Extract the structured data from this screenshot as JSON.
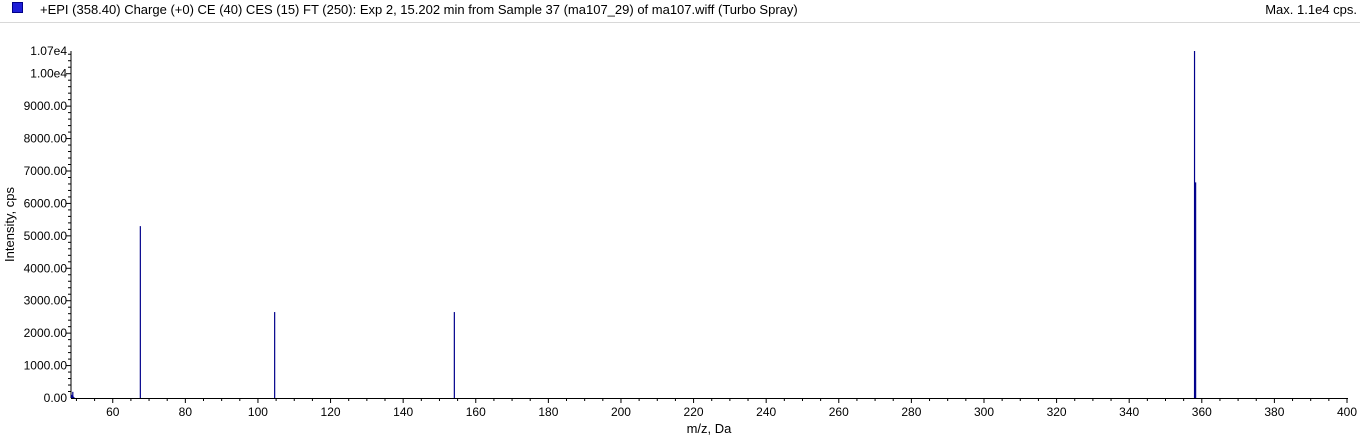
{
  "header": {
    "title": "+EPI (358.40) Charge (+0) CE (40) CES (15) FT (250): Exp 2, 15.202 min from Sample 37 (ma107_29) of ma107.wiff (Turbo Spray)",
    "max_label": "Max. 1.1e4 cps."
  },
  "chart_data": {
    "type": "bar",
    "title": "+EPI (358.40) Charge (+0) CE (40) CES (15) FT (250): Exp 2, 15.202 min from Sample 37 (ma107_29) of ma107.wiff (Turbo Spray)",
    "xlabel": "m/z, Da",
    "ylabel": "Intensity, cps",
    "xlim": [
      48.5,
      400
    ],
    "ylim": [
      0,
      10700
    ],
    "x_ticks": [
      60,
      80,
      100,
      120,
      140,
      160,
      180,
      200,
      220,
      240,
      260,
      280,
      300,
      320,
      340,
      360,
      380,
      400
    ],
    "y_ticks": [
      {
        "value": 0,
        "label": "0.00"
      },
      {
        "value": 1000,
        "label": "1000.00"
      },
      {
        "value": 2000,
        "label": "2000.00"
      },
      {
        "value": 3000,
        "label": "3000.00"
      },
      {
        "value": 4000,
        "label": "4000.00"
      },
      {
        "value": 5000,
        "label": "5000.00"
      },
      {
        "value": 6000,
        "label": "6000.00"
      },
      {
        "value": 7000,
        "label": "7000.00"
      },
      {
        "value": 8000,
        "label": "8000.00"
      },
      {
        "value": 9000,
        "label": "9000.00"
      },
      {
        "value": 10000,
        "label": "1.00e4"
      },
      {
        "value": 10700,
        "label": "1.07e4"
      }
    ],
    "peaks": [
      {
        "mz": 49.0,
        "intensity": 190
      },
      {
        "mz": 67.6,
        "intensity": 5300
      },
      {
        "mz": 104.6,
        "intensity": 2650
      },
      {
        "mz": 154.1,
        "intensity": 2650
      },
      {
        "mz": 358.0,
        "intensity": 10700
      },
      {
        "mz": 358.3,
        "intensity": 6650
      }
    ],
    "grid": false,
    "colors": {
      "peak": "#00008b",
      "axis": "#000000",
      "legend_swatch": "#1f1fd8"
    }
  }
}
